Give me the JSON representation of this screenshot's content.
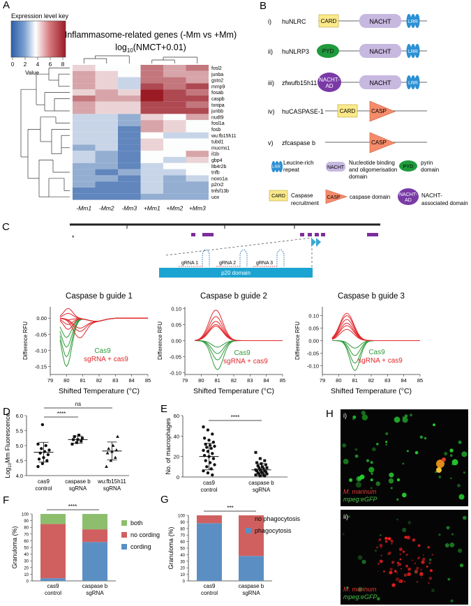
{
  "panels": {
    "A": "A",
    "B": "B",
    "C": "C",
    "D": "D",
    "E": "E",
    "F": "F",
    "G": "G",
    "H": "H"
  },
  "heatmap": {
    "key_title": "Expression level key",
    "key_ticks": [
      "0",
      "2",
      "4",
      "6",
      "8"
    ],
    "key_label": "Value",
    "title1": "Inflammasome-related genes (-Mm vs +Mm)",
    "title2_main": "log",
    "title2_sub": "10",
    "title2_rest": "(NMCT+0.01)",
    "genes": [
      "fosl2",
      "junba",
      "gsto2",
      "mmp9",
      "fosab",
      "caspb",
      "txnipa",
      "junbb",
      "nudt9",
      "fosl1a",
      "fosb",
      "wu:fb15h11",
      "tubd1",
      "mucms1",
      "il1b",
      "gbp4",
      "ltb4r2b",
      "tnfb",
      "noxo1a",
      "p2rx2",
      "tnfsf13b",
      "uox"
    ],
    "columns": [
      "-Mm1",
      "-Mm2",
      "-Mm3",
      "+Mm1",
      "+Mm2",
      "+Mm3"
    ],
    "values": [
      [
        5,
        4,
        4,
        7,
        6,
        7
      ],
      [
        6,
        5,
        4,
        7,
        6,
        6
      ],
      [
        6,
        5,
        3,
        7,
        7,
        6
      ],
      [
        6,
        5,
        3,
        8,
        7,
        8
      ],
      [
        5,
        6,
        5,
        9,
        8,
        7
      ],
      [
        7,
        6,
        6,
        9,
        8,
        8
      ],
      [
        6,
        5,
        5,
        8,
        8,
        7
      ],
      [
        6,
        5,
        5,
        8,
        8,
        8
      ],
      [
        3,
        3,
        2,
        5,
        4,
        6
      ],
      [
        3,
        3,
        2,
        6,
        5,
        4
      ],
      [
        3,
        3,
        1,
        6,
        5,
        4
      ],
      [
        3,
        3,
        1,
        4,
        3,
        3
      ],
      [
        3,
        3,
        1,
        5,
        4,
        4
      ],
      [
        2,
        3,
        1,
        5,
        4,
        4
      ],
      [
        3,
        2,
        1,
        4,
        4,
        6
      ],
      [
        3,
        2,
        1,
        4,
        3,
        5
      ],
      [
        2,
        2,
        1,
        3,
        4,
        4
      ],
      [
        2,
        1,
        2,
        3,
        3,
        4
      ],
      [
        2,
        2,
        1,
        3,
        2,
        3
      ],
      [
        2,
        1,
        1,
        3,
        2,
        2
      ],
      [
        1,
        1,
        1,
        3,
        2,
        2
      ],
      [
        1,
        1,
        1,
        2,
        2,
        2
      ]
    ]
  },
  "domains": {
    "rows": [
      {
        "num": "i)",
        "name": "huNLRC",
        "doms": [
          "CARD",
          "NACHT",
          "LRR"
        ]
      },
      {
        "num": "ii)",
        "name": "huNLRP3",
        "doms": [
          "PYD",
          "NACHT",
          "LRR"
        ]
      },
      {
        "num": "iii)",
        "name": "zfwufb15h11",
        "doms": [
          "NACHT-AD",
          "NACHT",
          "LRR"
        ]
      },
      {
        "num": "iv)",
        "name": "huCASPASE-1",
        "doms": [
          "CARD",
          "CASP"
        ]
      },
      {
        "num": "v)",
        "name": "zfcaspase b",
        "doms": [
          "CASP"
        ]
      }
    ],
    "legend": {
      "lrr_icon": "LRR",
      "lrr1": "Leucine-rich",
      "lrr2": "repeat",
      "nacht_icon": "NACHT",
      "nacht1": "Nucleotide binding",
      "nacht2": "and oligomerisation",
      "nacht3": "domain",
      "pyd_icon": "PYD",
      "pyd1": "pyrin",
      "pyd2": "domain",
      "card_icon": "CARD",
      "card1": "Caspase",
      "card2": "recruitment",
      "casp_icon": "CASP",
      "casp1": "caspase domain",
      "nad_icon1": "NACHT-",
      "nad_icon2": "AD",
      "nad1": "NACHT-",
      "nad2": "associated domain"
    }
  },
  "gene_map": {
    "star": "*",
    "grnas": [
      "gRNA 1",
      "gRNA 2",
      "gRNA 3"
    ],
    "domain": "p20 domain"
  },
  "melt_curves": [
    {
      "title": "Caspase b guide 1",
      "xlabel": "Shifted Temperature (°C)",
      "ylabel": "Difference RFU",
      "xticks": [
        "79",
        "80",
        "81",
        "82",
        "83",
        "84",
        "85"
      ],
      "yticks": [
        "0.00",
        "-0.05",
        "-0.10",
        "-0.15"
      ],
      "legend_cas9": "Cas9",
      "legend_sg": "sgRNA + cas9"
    },
    {
      "title": "Caspase b guide 2",
      "xlabel": "Shifted Temperature (°C)",
      "ylabel": "Difference RFU",
      "xticks": [
        "79",
        "80",
        "81",
        "82",
        "83",
        "84",
        "85"
      ],
      "yticks": [
        "0.10",
        "0.05",
        "0.00",
        "-0.05",
        "-0.10"
      ],
      "legend_cas9": "Cas9",
      "legend_sg": "sgRNA + cas9"
    },
    {
      "title": "Caspase b guide 3",
      "xlabel": "Shifted Temperature (°C)",
      "ylabel": "Difference RFU",
      "xticks": [
        "79",
        "80",
        "81",
        "82",
        "83",
        "84",
        "85"
      ],
      "yticks": [
        "0.10",
        "0.05",
        "0.00",
        "-0.05",
        "-0.10"
      ],
      "legend_cas9": "Cas9",
      "legend_sg": "sgRNA + cas9"
    }
  ],
  "chart_data": [
    {
      "type": "scatter",
      "ylabel_main": "Log",
      "ylabel_sub": "10",
      "ylabel_rest": "Mm Fluorescence",
      "ylim": [
        4.0,
        6.0
      ],
      "yticks": [
        "4.0",
        "4.5",
        "5.0",
        "5.5",
        "6.0"
      ],
      "categories": [
        "cas9",
        "caspase b",
        "wu:fb15h11"
      ],
      "categories2": [
        "control",
        "sgRNA",
        "sgRNA"
      ],
      "values": [
        [
          4.3,
          4.4,
          4.5,
          4.55,
          4.6,
          4.7,
          4.75,
          4.8,
          4.85,
          4.9,
          5.0,
          5.05,
          5.7
        ],
        [
          5.05,
          5.1,
          5.15,
          5.2,
          5.2,
          5.25,
          5.3,
          5.35
        ],
        [
          4.3,
          4.5,
          4.6,
          4.75,
          4.8,
          4.85,
          4.9,
          5.0,
          5.3
        ]
      ],
      "means": [
        4.78,
        5.2,
        4.82
      ],
      "sds": [
        0.33,
        0.12,
        0.3
      ],
      "sig1": "****",
      "sig2": "ns"
    },
    {
      "type": "scatter",
      "ylabel": "No. of macrophages",
      "ylim": [
        0,
        60
      ],
      "yticks": [
        "0",
        "20",
        "40",
        "60"
      ],
      "categories": [
        "cas9",
        "caspase b"
      ],
      "categories2": [
        "control",
        "sgRNA"
      ],
      "values": [
        [
          49,
          46,
          42,
          38,
          36,
          34,
          32,
          31,
          30,
          29,
          28,
          26,
          25,
          23,
          21,
          20,
          18,
          16,
          14,
          12,
          10,
          8,
          6,
          4,
          2
        ],
        [
          24,
          18,
          16,
          14,
          13,
          12,
          11,
          10,
          9,
          9,
          8,
          7,
          7,
          6,
          6,
          5,
          5,
          4,
          4,
          3,
          3,
          2,
          2,
          1,
          1
        ]
      ],
      "means": [
        20,
        7
      ],
      "sds": [
        13,
        6
      ],
      "sig": "****"
    },
    {
      "type": "bar",
      "ylabel": "Granuloma (%)",
      "ylim": [
        0,
        100
      ],
      "yticks": [
        "0",
        "10",
        "20",
        "30",
        "40",
        "50",
        "60",
        "70",
        "80",
        "90",
        "100"
      ],
      "categories": [
        "cas9",
        "caspase b"
      ],
      "categories2": [
        "control",
        "sgRNA"
      ],
      "series": [
        {
          "name": "cording",
          "values": [
            4,
            58
          ],
          "color": "#5b8fc4"
        },
        {
          "name": "no cording",
          "values": [
            81,
            19
          ],
          "color": "#d06060"
        },
        {
          "name": "both",
          "values": [
            15,
            23
          ],
          "color": "#8cbe6e"
        }
      ],
      "sig": "****"
    },
    {
      "type": "bar",
      "ylabel": "Granuloma (%)",
      "ylim": [
        0,
        100
      ],
      "yticks": [
        "0",
        "10",
        "20",
        "30",
        "40",
        "50",
        "60",
        "70",
        "80",
        "90",
        "100"
      ],
      "categories": [
        "cas9",
        "caspase b"
      ],
      "categories2": [
        "control",
        "sgRNA"
      ],
      "series": [
        {
          "name": "phagocytosis",
          "values": [
            88,
            38
          ],
          "color": "#5b8fc4"
        },
        {
          "name": "no phagocytosis",
          "values": [
            12,
            62
          ],
          "color": "#d06060"
        }
      ],
      "sig": "***"
    }
  ],
  "micro": {
    "i_label": "i)",
    "ii_label": "ii)",
    "mm": "M. marinum",
    "mpeg": "mpeg:eGFP"
  }
}
